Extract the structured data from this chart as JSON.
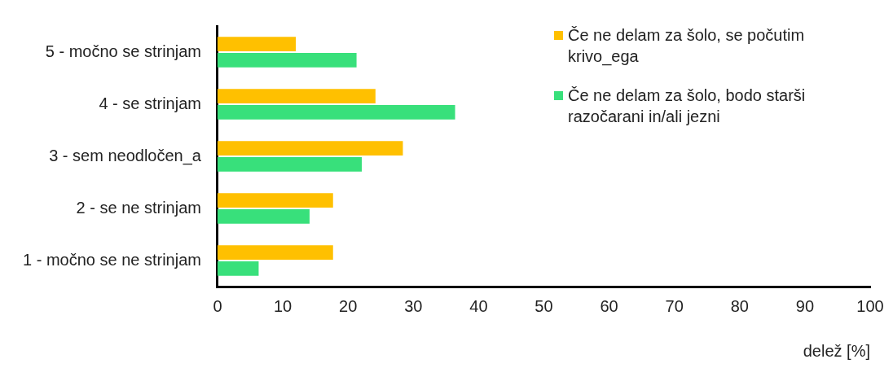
{
  "chart_data": {
    "type": "bar",
    "orientation": "horizontal",
    "xlabel": "delež [%]",
    "categories": [
      "5 - močno se strinjam",
      "4 - se strinjam",
      "3 - sem neodločen_a",
      "2 - se ne strinjam",
      "1 - močno se ne strinjam"
    ],
    "series": [
      {
        "name": "Če ne delam za šolo, se počutim krivo_ega",
        "color": "#ffc000",
        "values": [
          12.0,
          24.2,
          28.4,
          17.7,
          17.7
        ]
      },
      {
        "name": "Če ne delam za šolo, bodo starši razočarani in/ali jezni",
        "color": "#38e07b",
        "values": [
          21.3,
          36.4,
          22.1,
          14.1,
          6.3
        ]
      }
    ],
    "xlim": [
      0,
      100
    ],
    "xticks": [
      0,
      10,
      20,
      30,
      40,
      50,
      60,
      70,
      80,
      90,
      100
    ],
    "grid": false,
    "legend": "top right"
  }
}
